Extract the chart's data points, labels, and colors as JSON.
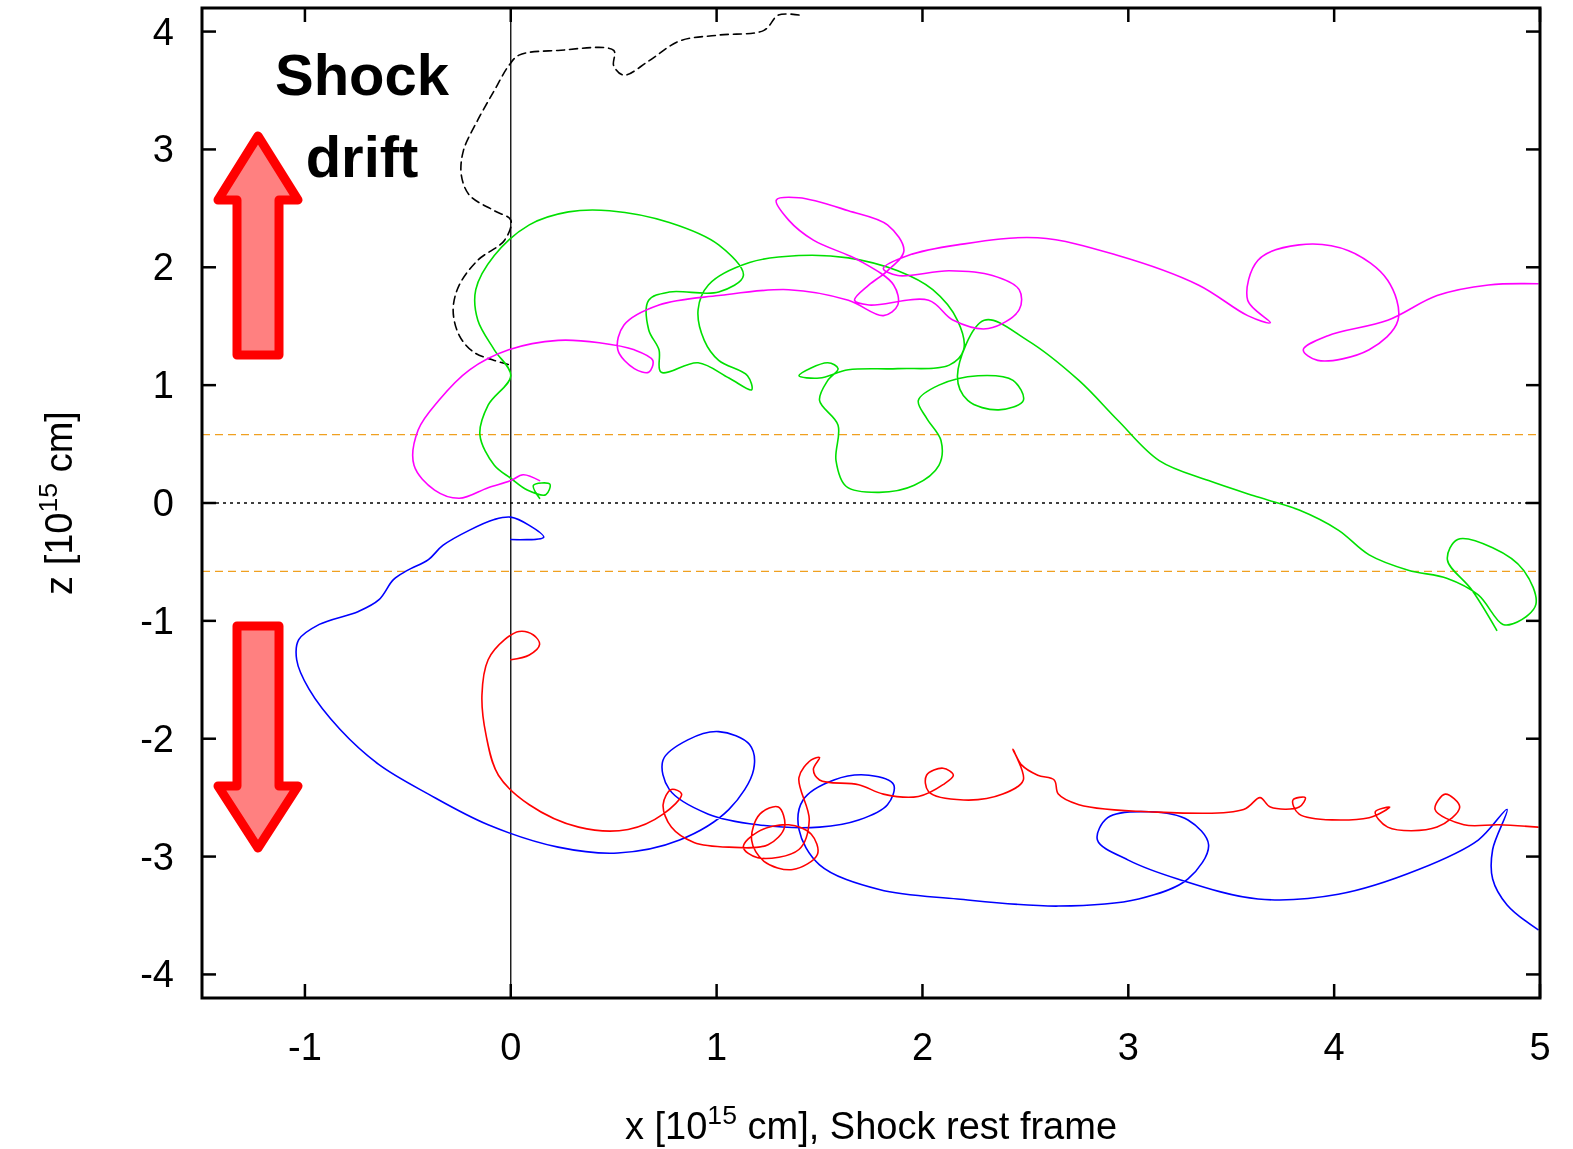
{
  "chart_data": {
    "type": "line",
    "xlabel": "x [10$^{15}$ cm], Shock rest frame",
    "ylabel": "z [10$^{15}$ cm]",
    "annotations": [
      "Shock drift"
    ],
    "xlim": [
      -1.5,
      5
    ],
    "xticks": [
      -1,
      0,
      1,
      2,
      3,
      4,
      5
    ],
    "ylim": [
      -4.2,
      4.2
    ],
    "yticks": [
      -4,
      -3,
      -2,
      -1,
      0,
      1,
      2,
      3,
      4
    ],
    "grid": false,
    "ref_lines": [
      {
        "axis": "x",
        "value": 0,
        "color": "#000000",
        "line_style": "solid"
      },
      {
        "axis": "y",
        "value": 0,
        "color": "#000000",
        "line_style": "dotted"
      },
      {
        "axis": "y",
        "value": 0.58,
        "color": "#f0a020",
        "line_style": "dashed"
      },
      {
        "axis": "y",
        "value": -0.58,
        "color": "#f0a020",
        "line_style": "dashed"
      }
    ],
    "series": [
      {
        "color": "#000000",
        "line_style": "dashed",
        "x": [
          1.4,
          1.3,
          1.23,
          1.01,
          0.82,
          0.67,
          0.55,
          0.5,
          0.5,
          0.23,
          0.04,
          -0.01,
          -0.08,
          -0.16,
          -0.23,
          -0.24,
          -0.2,
          -0.08,
          0,
          -0.03,
          -0.16,
          -0.25,
          -0.28,
          -0.25,
          -0.18,
          -0.08,
          0
        ],
        "values": [
          4.14,
          4.14,
          4.01,
          3.97,
          3.92,
          3.75,
          3.63,
          3.71,
          3.84,
          3.84,
          3.8,
          3.71,
          3.5,
          3.25,
          2.99,
          2.78,
          2.61,
          2.48,
          2.4,
          2.23,
          2.06,
          1.85,
          1.64,
          1.42,
          1.28,
          1.21,
          1.17
        ]
      },
      {
        "color": "#00e000",
        "x": [
          0.14,
          0.11,
          0.19,
          0.17,
          0.08,
          0,
          -0.08,
          -0.15,
          -0.11,
          0,
          -0.08,
          -0.16,
          -0.17,
          -0.08,
          0.09,
          0.28,
          0.48,
          0.77,
          1.01,
          1.13,
          1.01,
          0.77,
          0.67,
          0.67,
          0.72,
          0.73,
          0.91,
          1.06,
          1.17,
          1.15,
          1.01,
          0.94,
          0.91,
          0.96,
          1.16,
          1.4,
          1.64,
          1.88,
          2.05,
          2.17,
          2.2,
          2.13,
          1.88,
          1.64,
          1.5,
          1.4,
          1.54,
          1.59,
          1.54,
          1.5,
          1.59,
          1.58,
          1.63,
          1.79,
          1.96,
          2.08,
          2.09,
          2.02,
          1.98,
          2.08,
          2.27,
          2.44,
          2.49,
          2.37,
          2.22,
          2.17,
          2.3,
          2.51,
          2.76,
          2.95,
          3.15,
          3.39,
          3.63,
          3.83,
          4.02,
          4.17,
          4.36,
          4.55,
          4.7,
          4.82,
          4.89,
          4.98,
          4.92,
          4.77,
          4.6,
          4.55,
          4.67,
          4.79
        ],
        "values": [
          0.04,
          0.15,
          0.16,
          0.07,
          0.11,
          0.21,
          0.32,
          0.58,
          0.83,
          1.08,
          1.3,
          1.55,
          1.81,
          2.1,
          2.36,
          2.47,
          2.48,
          2.38,
          2.19,
          1.93,
          1.79,
          1.79,
          1.72,
          1.47,
          1.3,
          1.11,
          1.19,
          1.06,
          0.96,
          1.08,
          1.21,
          1.38,
          1.64,
          1.85,
          2.04,
          2.1,
          2.08,
          1.97,
          1.81,
          1.55,
          1.3,
          1.17,
          1.14,
          1.13,
          1.06,
          1.08,
          1.19,
          1.14,
          1.04,
          0.87,
          0.66,
          0.36,
          0.14,
          0.09,
          0.15,
          0.32,
          0.53,
          0.72,
          0.87,
          1.0,
          1.08,
          1.04,
          0.87,
          0.79,
          0.87,
          1.08,
          1.55,
          1.38,
          1.04,
          0.7,
          0.36,
          0.19,
          0.05,
          -0.06,
          -0.23,
          -0.44,
          -0.57,
          -0.64,
          -0.78,
          -1.03,
          -1.01,
          -0.86,
          -0.57,
          -0.38,
          -0.31,
          -0.48,
          -0.74,
          -1.08
        ]
      },
      {
        "color": "#ff00ff",
        "x": [
          0.14,
          0.06,
          0,
          -0.11,
          -0.25,
          -0.37,
          -0.47,
          -0.45,
          -0.35,
          -0.2,
          -0.01,
          0.23,
          0.43,
          0.6,
          0.69,
          0.67,
          0.6,
          0.52,
          0.55,
          0.72,
          1.01,
          1.35,
          1.64,
          1.81,
          1.88,
          1.86,
          1.69,
          1.47,
          1.35,
          1.29,
          1.4,
          1.64,
          1.83,
          1.91,
          1.83,
          1.74,
          1.67,
          1.74,
          2.03,
          2.15,
          2.32,
          2.47,
          2.47,
          2.34,
          2.13,
          1.88,
          1.81,
          1.93,
          2.17,
          2.56,
          2.95,
          3.34,
          3.58,
          3.69,
          3.58,
          3.63,
          3.83,
          4.07,
          4.26,
          4.31,
          4.17,
          3.92,
          3.85,
          3.97,
          4.26,
          4.5,
          4.75,
          4.99
        ],
        "values": [
          0.19,
          0.24,
          0.19,
          0.13,
          0.04,
          0.11,
          0.32,
          0.62,
          0.87,
          1.13,
          1.3,
          1.38,
          1.36,
          1.3,
          1.21,
          1.11,
          1.14,
          1.3,
          1.51,
          1.68,
          1.76,
          1.81,
          1.72,
          1.59,
          1.68,
          1.85,
          2.06,
          2.23,
          2.4,
          2.57,
          2.59,
          2.48,
          2.36,
          2.14,
          1.97,
          1.85,
          1.72,
          1.68,
          1.72,
          1.55,
          1.48,
          1.64,
          1.81,
          1.93,
          1.97,
          1.93,
          1.99,
          2.1,
          2.19,
          2.25,
          2.1,
          1.85,
          1.59,
          1.53,
          1.72,
          2.06,
          2.19,
          2.14,
          1.89,
          1.55,
          1.3,
          1.21,
          1.3,
          1.42,
          1.55,
          1.76,
          1.85,
          1.86
        ]
      },
      {
        "color": "#0000ff",
        "x": [
          0,
          0.16,
          0.09,
          0,
          -0.08,
          -0.2,
          -0.33,
          -0.4,
          -0.5,
          -0.57,
          -0.64,
          -0.74,
          -0.93,
          -1.03,
          -1.04,
          -0.98,
          -0.83,
          -0.64,
          -0.4,
          -0.11,
          0.23,
          0.52,
          0.82,
          1.06,
          1.18,
          1.16,
          1.01,
          0.86,
          0.74,
          0.77,
          0.96,
          1.2,
          1.5,
          1.69,
          1.83,
          1.86,
          1.74,
          1.57,
          1.42,
          1.4,
          1.5,
          1.79,
          2.17,
          2.66,
          3.05,
          3.29,
          3.39,
          3.29,
          3.1,
          2.9,
          2.85,
          3.0,
          3.24,
          3.63,
          4.02,
          4.41,
          4.7,
          4.84,
          4.77,
          4.77,
          4.84,
          4.99
        ],
        "values": [
          -0.31,
          -0.29,
          -0.19,
          -0.12,
          -0.14,
          -0.23,
          -0.36,
          -0.48,
          -0.57,
          -0.65,
          -0.82,
          -0.92,
          -1.03,
          -1.16,
          -1.33,
          -1.58,
          -1.92,
          -2.22,
          -2.47,
          -2.73,
          -2.92,
          -2.97,
          -2.86,
          -2.6,
          -2.26,
          -2.05,
          -1.94,
          -2.01,
          -2.18,
          -2.43,
          -2.64,
          -2.73,
          -2.75,
          -2.69,
          -2.56,
          -2.39,
          -2.31,
          -2.35,
          -2.52,
          -2.77,
          -3.07,
          -3.28,
          -3.36,
          -3.42,
          -3.36,
          -3.19,
          -2.9,
          -2.69,
          -2.62,
          -2.67,
          -2.86,
          -3.03,
          -3.19,
          -3.36,
          -3.32,
          -3.11,
          -2.86,
          -2.6,
          -2.94,
          -3.19,
          -3.41,
          -3.62
        ]
      },
      {
        "color": "#ff0000",
        "x": [
          0,
          0.09,
          0.14,
          0.11,
          0.04,
          -0.03,
          -0.11,
          -0.14,
          -0.12,
          -0.06,
          0.09,
          0.33,
          0.57,
          0.74,
          0.83,
          0.78,
          0.74,
          0.78,
          0.89,
          1.06,
          1.25,
          1.33,
          1.3,
          1.21,
          1.17,
          1.23,
          1.37,
          1.49,
          1.46,
          1.35,
          1.2,
          1.13,
          1.2,
          1.4,
          1.45,
          1.4,
          1.46,
          1.5,
          1.47,
          1.5,
          1.69,
          1.81,
          1.98,
          2.1,
          2.15,
          2.1,
          2.02,
          2.03,
          2.2,
          2.39,
          2.49,
          2.44,
          2.48,
          2.56,
          2.64,
          2.66,
          2.76,
          3.1,
          3.56,
          3.64,
          3.69,
          3.83,
          3.86,
          3.8,
          3.83,
          4.17,
          4.27,
          4.2,
          4.26,
          4.5,
          4.61,
          4.54,
          4.49,
          4.63,
          4.8,
          4.99
        ],
        "values": [
          -1.33,
          -1.29,
          -1.2,
          -1.12,
          -1.09,
          -1.16,
          -1.33,
          -1.63,
          -1.97,
          -2.31,
          -2.56,
          -2.75,
          -2.77,
          -2.64,
          -2.47,
          -2.43,
          -2.56,
          -2.75,
          -2.88,
          -2.92,
          -2.9,
          -2.75,
          -2.58,
          -2.64,
          -2.86,
          -3.04,
          -3.11,
          -2.98,
          -2.81,
          -2.73,
          -2.79,
          -2.92,
          -3.01,
          -2.94,
          -2.69,
          -2.33,
          -2.18,
          -2.16,
          -2.26,
          -2.35,
          -2.39,
          -2.47,
          -2.49,
          -2.39,
          -2.31,
          -2.25,
          -2.31,
          -2.45,
          -2.52,
          -2.47,
          -2.35,
          -2.09,
          -2.22,
          -2.31,
          -2.35,
          -2.47,
          -2.56,
          -2.62,
          -2.6,
          -2.5,
          -2.58,
          -2.58,
          -2.5,
          -2.52,
          -2.64,
          -2.67,
          -2.58,
          -2.62,
          -2.75,
          -2.75,
          -2.58,
          -2.47,
          -2.6,
          -2.73,
          -2.73,
          -2.75
        ]
      }
    ]
  }
}
